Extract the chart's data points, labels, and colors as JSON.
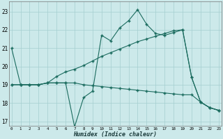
{
  "xlabel": "Humidex (Indice chaleur)",
  "background_color": "#cce9ea",
  "grid_color": "#a5ced0",
  "line_color": "#1a6b5e",
  "xlim_min": -0.3,
  "xlim_max": 23.3,
  "ylim_min": 16.75,
  "ylim_max": 23.55,
  "yticks": [
    17,
    18,
    19,
    20,
    21,
    22,
    23
  ],
  "xticks": [
    0,
    1,
    2,
    3,
    4,
    5,
    6,
    7,
    8,
    9,
    10,
    11,
    12,
    13,
    14,
    15,
    16,
    17,
    18,
    19,
    20,
    21,
    22,
    23
  ],
  "series1_x": [
    0,
    1,
    2,
    3,
    4,
    5,
    6,
    7,
    8,
    9,
    10,
    11,
    12,
    13,
    14,
    15,
    16,
    17,
    18,
    19,
    20,
    21,
    22,
    23
  ],
  "series1_y": [
    21.0,
    19.0,
    19.0,
    19.0,
    19.1,
    19.1,
    19.1,
    16.7,
    18.3,
    18.65,
    21.7,
    21.4,
    22.1,
    22.5,
    23.1,
    22.3,
    21.8,
    21.7,
    21.85,
    22.0,
    19.4,
    18.05,
    17.75,
    17.6
  ],
  "series2_x": [
    0,
    1,
    2,
    3,
    4,
    5,
    6,
    7,
    8,
    9,
    10,
    11,
    12,
    13,
    14,
    15,
    16,
    17,
    18,
    19,
    20,
    21,
    22,
    23
  ],
  "series2_y": [
    19.0,
    19.0,
    19.0,
    19.0,
    19.1,
    19.45,
    19.7,
    19.85,
    20.05,
    20.3,
    20.55,
    20.75,
    20.95,
    21.15,
    21.35,
    21.5,
    21.65,
    21.8,
    21.95,
    22.0,
    19.4,
    18.05,
    17.75,
    17.6
  ],
  "series3_x": [
    0,
    1,
    2,
    3,
    4,
    5,
    6,
    7,
    8,
    9,
    10,
    11,
    12,
    13,
    14,
    15,
    16,
    17,
    18,
    19,
    20,
    21,
    22,
    23
  ],
  "series3_y": [
    19.0,
    19.0,
    19.0,
    19.0,
    19.1,
    19.1,
    19.1,
    19.1,
    19.0,
    18.95,
    18.9,
    18.85,
    18.8,
    18.75,
    18.7,
    18.65,
    18.6,
    18.55,
    18.5,
    18.45,
    18.45,
    18.05,
    17.75,
    17.6
  ]
}
